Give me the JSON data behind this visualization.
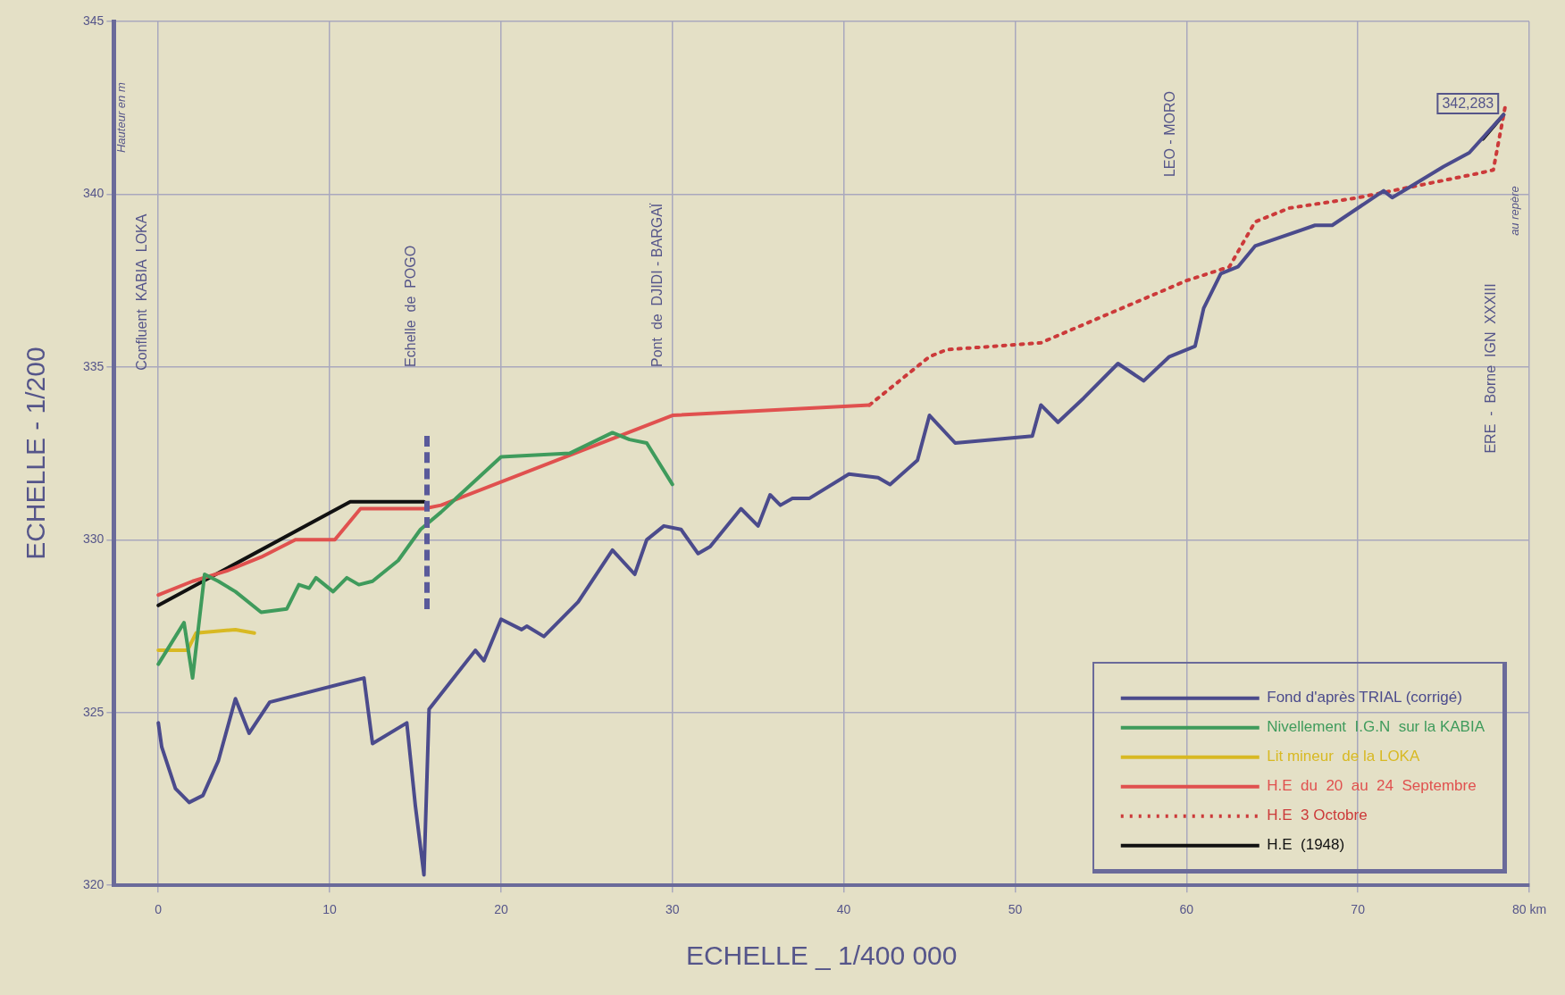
{
  "chart_data": {
    "type": "line",
    "xlabel": "ECHELLE _ 1/400 000",
    "ylabel": "ECHELLE - 1/200",
    "xlim": [
      -2.6,
      80
    ],
    "ylim": [
      320,
      345
    ],
    "xticks": [
      0,
      10,
      20,
      30,
      40,
      50,
      60,
      70,
      {
        "value": 80,
        "label": "80 km"
      }
    ],
    "yticks": [
      320,
      325,
      330,
      335,
      340,
      345
    ],
    "grid": true,
    "legend": "bottom right",
    "marker": "none",
    "annotations": [
      "Hauteur en m",
      "Confluent  KABIA  LOKA",
      "Echelle  de  POGO",
      "Pont  de  DJIDI - BARGAÏ",
      "LEO - MORO",
      "ERE  -  Borne  IGN  XXXIII",
      "au repère",
      {
        "text": "342,283",
        "x": 78.5,
        "y": 342.283
      }
    ],
    "series": [
      {
        "name": "Fond d'après TRIAL (corrigé)",
        "color": "#4b4b8c",
        "x": [
          0,
          0.2,
          1,
          1.8,
          2.6,
          3.5,
          4.5,
          5.3,
          6.5,
          12,
          12.5,
          14.5,
          15,
          15.5,
          15.8,
          18.5,
          19,
          20,
          21.2,
          21.5,
          22.5,
          24.5,
          26.5,
          27.8,
          28.5,
          29.5,
          30.5,
          31.5,
          32.2,
          34,
          35,
          35.7,
          36.3,
          37,
          38,
          40.3,
          42,
          42.7,
          44.3,
          45,
          46.5,
          51,
          51.5,
          52.5,
          54,
          56,
          57.5,
          59,
          60.5,
          61,
          62,
          63,
          64,
          67.5,
          68.5,
          71.5,
          72,
          73,
          75,
          76.5,
          78.5
        ],
        "values": [
          324.7,
          324,
          322.8,
          322.4,
          322.6,
          323.6,
          325.4,
          324.4,
          325.3,
          326,
          324.1,
          324.7,
          322.3,
          320.3,
          325.1,
          326.8,
          326.5,
          327.7,
          327.4,
          327.5,
          327.2,
          328.2,
          329.7,
          329,
          330,
          330.4,
          330.3,
          329.6,
          329.8,
          330.9,
          330.4,
          331.3,
          331,
          331.2,
          331.2,
          331.9,
          331.8,
          331.6,
          332.3,
          333.6,
          332.8,
          333,
          333.9,
          333.4,
          334.1,
          335.1,
          334.6,
          335.3,
          335.6,
          336.7,
          337.7,
          337.9,
          338.5,
          339.1,
          339.1,
          340.1,
          339.9,
          340.2,
          340.8,
          341.2,
          342.3
        ]
      },
      {
        "name": "Nivellement  I.G.N  sur la KABIA",
        "color": "#3f9b5c",
        "x": [
          0,
          1.5,
          2,
          2.7,
          3.5,
          4.5,
          6,
          7.5,
          8.2,
          8.8,
          9.2,
          10.2,
          11,
          11.7,
          12.5,
          14,
          15.3,
          16.5,
          20,
          24,
          26.5,
          27.5,
          28.5,
          30
        ],
        "values": [
          326.4,
          327.6,
          326,
          329,
          328.8,
          328.5,
          327.9,
          328,
          328.7,
          328.6,
          328.9,
          328.5,
          328.9,
          328.7,
          328.8,
          329.4,
          330.3,
          330.8,
          332.4,
          332.5,
          333.1,
          332.9,
          332.8,
          331.6
        ]
      },
      {
        "name": "Lit mineur  de la LOKA",
        "color": "#d8b923",
        "x": [
          0,
          1.7,
          2.2,
          4.5,
          5.6
        ],
        "values": [
          326.8,
          326.8,
          327.3,
          327.4,
          327.3
        ]
      },
      {
        "name": "H.E  du  20  au  24  Septembre",
        "color": "#e0514f",
        "x": [
          0,
          2,
          4,
          6,
          8,
          10.3,
          11.8,
          15.5,
          16.5,
          30,
          41.5
        ],
        "values": [
          328.4,
          328.8,
          329.1,
          329.5,
          330,
          330,
          330.9,
          330.9,
          331,
          333.6,
          333.9
        ]
      },
      {
        "name": "H.E  3 Octobre",
        "color": "#cc3a3a",
        "line_style": "dotted",
        "x": [
          41.5,
          45,
          46,
          51.5,
          60,
          62.5,
          64,
          66,
          70,
          77,
          77.9,
          78.6
        ],
        "values": [
          333.9,
          335.3,
          335.5,
          335.7,
          337.5,
          337.9,
          339.2,
          339.6,
          339.9,
          340.6,
          340.7,
          342.55
        ]
      },
      {
        "name": "H.E  (1948)",
        "color": "#111111",
        "x": [
          0,
          11.2,
          15.5,
          46,
          77.3,
          78.5
        ],
        "values": [
          328.1,
          331.1,
          331.1,
          null,
          341.6,
          342.3
        ]
      }
    ]
  }
}
